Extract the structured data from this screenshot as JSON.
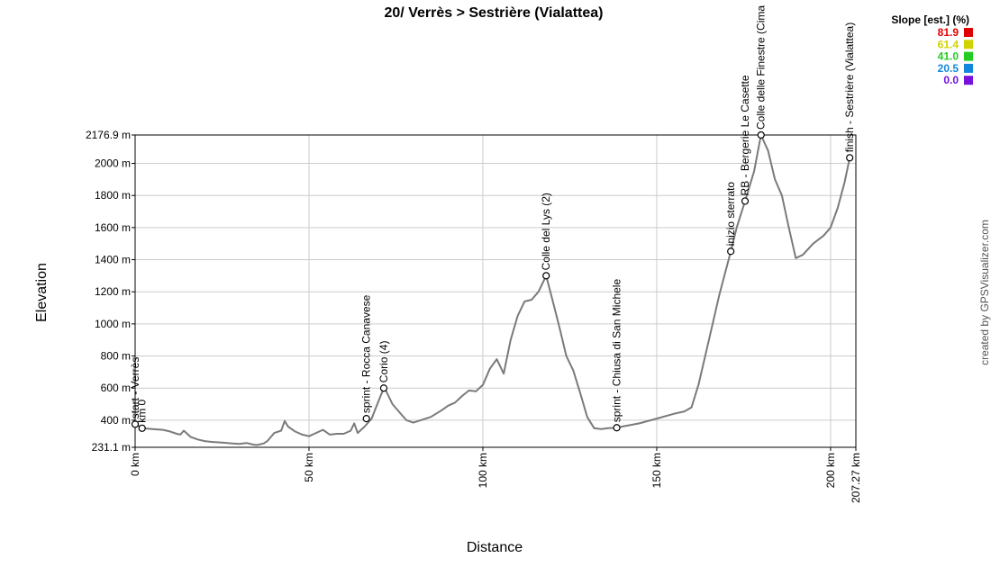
{
  "chart_data": {
    "type": "line",
    "title": "20/ Verrès > Sestrière (Vialattea)",
    "xlabel": "Distance",
    "ylabel": "Elevation",
    "xlim": [
      0,
      207.27
    ],
    "ylim": [
      231.1,
      2176.9
    ],
    "x_ticks": [
      {
        "value": 0,
        "label": "0 km"
      },
      {
        "value": 50,
        "label": "50 km"
      },
      {
        "value": 100,
        "label": "100 km"
      },
      {
        "value": 150,
        "label": "150 km"
      },
      {
        "value": 200,
        "label": "200 km"
      },
      {
        "value": 207.27,
        "label": "207.27 km"
      }
    ],
    "y_ticks": [
      {
        "value": 231.1,
        "label": "231.1 m"
      },
      {
        "value": 400,
        "label": "400 m"
      },
      {
        "value": 600,
        "label": "600 m"
      },
      {
        "value": 800,
        "label": "800 m"
      },
      {
        "value": 1000,
        "label": "1000 m"
      },
      {
        "value": 1200,
        "label": "1200 m"
      },
      {
        "value": 1400,
        "label": "1400 m"
      },
      {
        "value": 1600,
        "label": "1600 m"
      },
      {
        "value": 1800,
        "label": "1800 m"
      },
      {
        "value": 2000,
        "label": "2000 m"
      },
      {
        "value": 2176.9,
        "label": "2176.9 m"
      }
    ],
    "grid": true,
    "line_color": "#7a7a7a",
    "series": [
      {
        "x": [
          0,
          2,
          5,
          8,
          10,
          12,
          13,
          14,
          16,
          18,
          20,
          22,
          25,
          28,
          30,
          32,
          34,
          35,
          37,
          38,
          40,
          42,
          43,
          44,
          46,
          48,
          50,
          52,
          54,
          56,
          58,
          60,
          62,
          63,
          64,
          66,
          68,
          70,
          71.5,
          72,
          74,
          76,
          78,
          80,
          85,
          88,
          90,
          92,
          94,
          96,
          98,
          100,
          102,
          104,
          106,
          108,
          110,
          112,
          114,
          116,
          118.2,
          120,
          122,
          124,
          126,
          128,
          130,
          132,
          134,
          136,
          138.5,
          140,
          145,
          150,
          155,
          158,
          160,
          162,
          165,
          168,
          171.3,
          173,
          175.4,
          178,
          180,
          182,
          184,
          186,
          188,
          190,
          192,
          195,
          198,
          200,
          202,
          204,
          205.5
        ],
        "y": [
          375,
          350,
          345,
          340,
          330,
          315,
          310,
          335,
          295,
          280,
          270,
          265,
          260,
          255,
          252,
          258,
          248,
          245,
          255,
          270,
          320,
          335,
          395,
          360,
          330,
          310,
          300,
          320,
          340,
          310,
          315,
          315,
          335,
          380,
          320,
          360,
          410,
          520,
          600,
          590,
          500,
          450,
          400,
          385,
          420,
          460,
          490,
          510,
          550,
          585,
          580,
          620,
          720,
          780,
          690,
          900,
          1050,
          1140,
          1150,
          1200,
          1300,
          1150,
          980,
          800,
          710,
          570,
          420,
          350,
          345,
          350,
          353,
          360,
          380,
          410,
          440,
          455,
          480,
          620,
          900,
          1180,
          1452,
          1600,
          1765,
          1950,
          2176.9,
          2080,
          1900,
          1800,
          1600,
          1410,
          1430,
          1500,
          1550,
          1600,
          1720,
          1880,
          2035
        ]
      }
    ],
    "waypoints": [
      {
        "x": 0,
        "y": 375,
        "label": "start - Verrès"
      },
      {
        "x": 2,
        "y": 350,
        "label": "km 0"
      },
      {
        "x": 66.5,
        "y": 410,
        "label": "sprint - Rocca Canavese"
      },
      {
        "x": 71.5,
        "y": 600,
        "label": "Corio (4)"
      },
      {
        "x": 118.2,
        "y": 1300,
        "label": "Colle del Lys (2)"
      },
      {
        "x": 138.5,
        "y": 353,
        "label": "sprint - Chiusa di San Michele"
      },
      {
        "x": 171.3,
        "y": 1452,
        "label": "inizio sterrato"
      },
      {
        "x": 175.4,
        "y": 1765,
        "label": "RB - Bergerie Le Casette"
      },
      {
        "x": 180,
        "y": 2176.9,
        "label": "Colle delle Finestre (Cima"
      },
      {
        "x": 205.5,
        "y": 2035,
        "label": "finish - Sestrière (Vialattea)"
      }
    ],
    "legend": {
      "title": "Slope [est.] (%)",
      "placement": "top-right",
      "items": [
        {
          "value": "81.9",
          "color": "#e00000"
        },
        {
          "value": "61.4",
          "color": "#d2d200"
        },
        {
          "value": "41.0",
          "color": "#22cc22"
        },
        {
          "value": "20.5",
          "color": "#1188dd"
        },
        {
          "value": "0.0",
          "color": "#7711dd"
        }
      ]
    }
  },
  "credit": "created by GPSVisualizer.com"
}
